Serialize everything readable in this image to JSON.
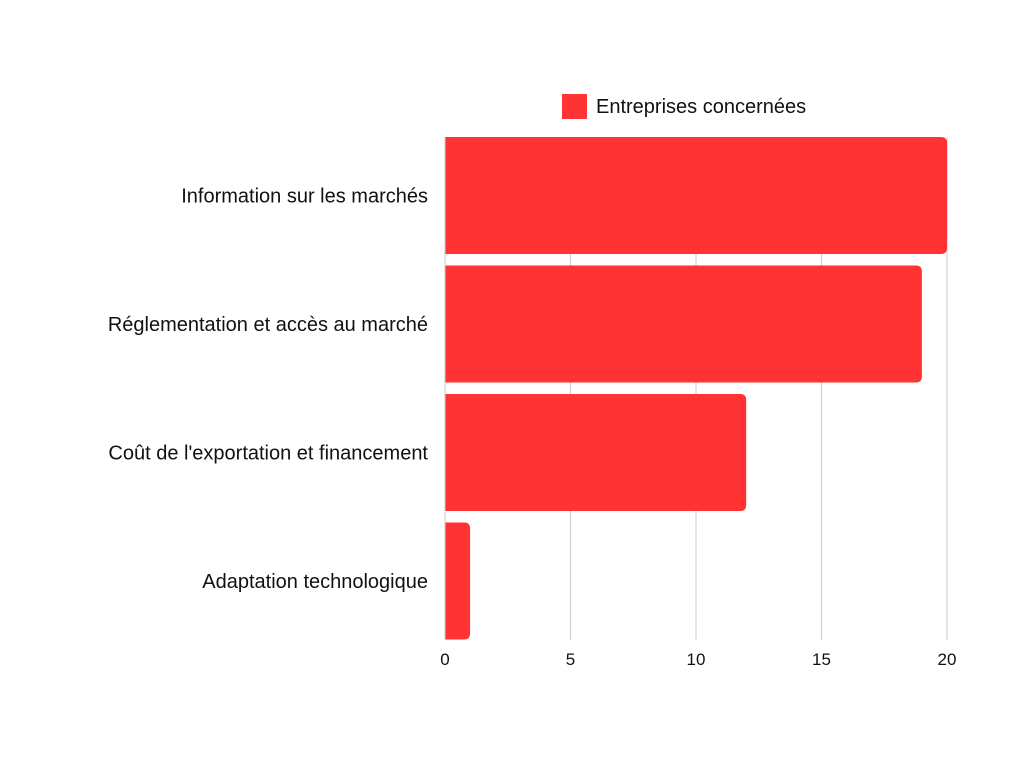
{
  "chart_data": {
    "type": "bar",
    "orientation": "horizontal",
    "categories": [
      "Information sur les marchés",
      "Réglementation et accès au marché",
      "Coût de l'exportation et financement",
      "Adaptation technologique"
    ],
    "series": [
      {
        "name": "Entreprises concernées",
        "values": [
          20,
          19,
          12,
          1
        ],
        "color": "#ff3333"
      }
    ],
    "xlim": [
      0,
      20
    ],
    "xticks": [
      "0",
      "5",
      "10",
      "15",
      "20"
    ],
    "title": "",
    "xlabel": "",
    "ylabel": "",
    "grid": "vertical",
    "legend_position": "top"
  }
}
